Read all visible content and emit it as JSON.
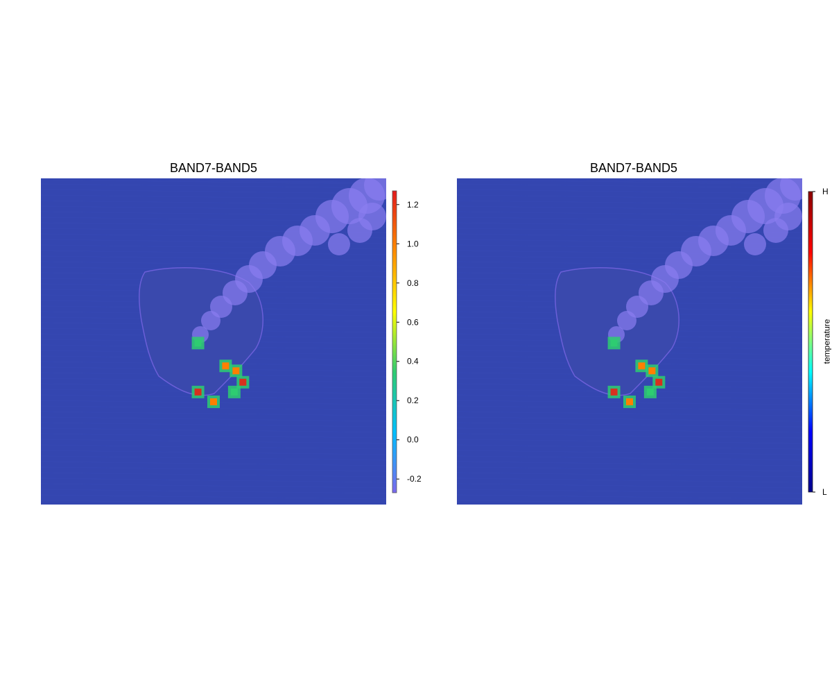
{
  "chart_data": [
    {
      "type": "heatmap",
      "title": "BAND7-BAND5",
      "xlabel": "",
      "ylabel": "",
      "colorbar": {
        "ticks": [
          "1.2",
          "1.0",
          "0.8",
          "0.6",
          "0.4",
          "0.2",
          "0.0",
          "-0.2"
        ],
        "tick_values": [
          1.2,
          1.0,
          0.8,
          0.6,
          0.4,
          0.2,
          0.0,
          -0.2
        ],
        "range": [
          -0.27,
          1.27
        ],
        "palette": [
          "#7b68ee",
          "#00bfff",
          "#2ecc71",
          "#ffff00",
          "#ff8c00",
          "#e31a1c"
        ]
      },
      "hotspots": [
        {
          "x": 0.455,
          "y": 0.505,
          "v": 0.6
        },
        {
          "x": 0.535,
          "y": 0.575,
          "v": 0.9
        },
        {
          "x": 0.565,
          "y": 0.59,
          "v": 1.0
        },
        {
          "x": 0.585,
          "y": 0.625,
          "v": 1.1
        },
        {
          "x": 0.455,
          "y": 0.655,
          "v": 1.05
        },
        {
          "x": 0.5,
          "y": 0.685,
          "v": 0.95
        },
        {
          "x": 0.56,
          "y": 0.655,
          "v": 0.5
        }
      ],
      "background_color": "#3446b0",
      "plume_color": "#8a7ef0"
    },
    {
      "type": "heatmap",
      "title": "BAND7-BAND5",
      "xlabel": "",
      "ylabel": "",
      "colorbar": {
        "label": "temperature",
        "ticks": [
          "H",
          "L"
        ],
        "palette": [
          "#00008b",
          "#0000ff",
          "#00ffff",
          "#ffff00",
          "#ff0000",
          "#8b0000"
        ]
      },
      "hotspots": [
        {
          "x": 0.455,
          "y": 0.505,
          "v": 0.6
        },
        {
          "x": 0.535,
          "y": 0.575,
          "v": 0.9
        },
        {
          "x": 0.565,
          "y": 0.59,
          "v": 1.0
        },
        {
          "x": 0.585,
          "y": 0.625,
          "v": 1.1
        },
        {
          "x": 0.455,
          "y": 0.655,
          "v": 1.05
        },
        {
          "x": 0.5,
          "y": 0.685,
          "v": 0.95
        },
        {
          "x": 0.56,
          "y": 0.655,
          "v": 0.5
        }
      ],
      "background_color": "#3446b0",
      "plume_color": "#8a7ef0"
    }
  ]
}
